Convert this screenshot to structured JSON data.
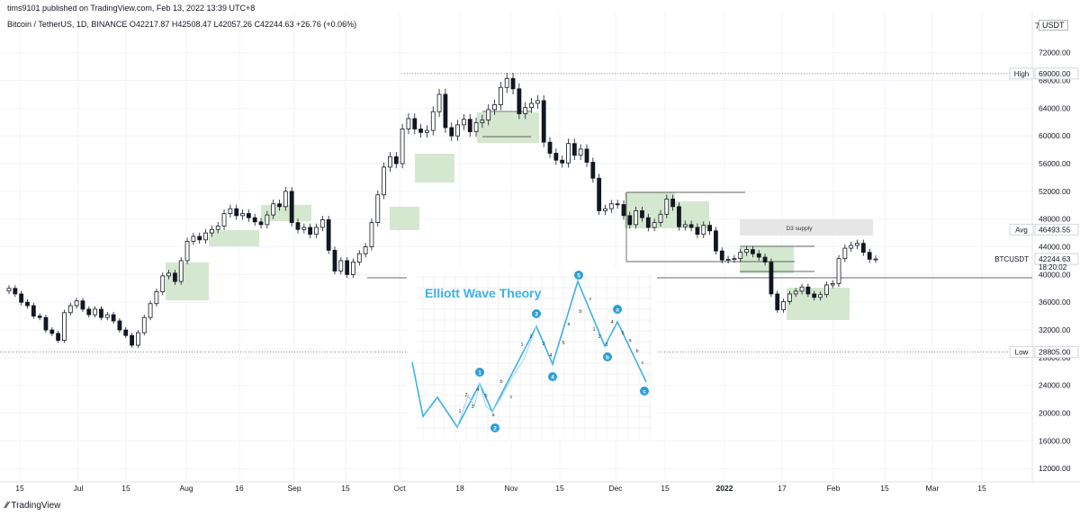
{
  "header": {
    "published_line": "tims9101 published on TradingView.com, Feb 13, 2022 13:39 UTC+8",
    "symbol_line": "Bitcoin / TetherUS, 1D, BINANCE  O42217.87  H42508.47  L42057.26  C42244.63  +26.76 (+0.06%)",
    "currency_badge": "USDT",
    "scale_mode": "7"
  },
  "footer": {
    "brand": "TradingView"
  },
  "colors": {
    "candle_up": "#131722",
    "candle_down": "#131722",
    "zone_fill": "#d4e8cf",
    "wave_line": "#3cb1e8",
    "label_bg": "#2a9fd8"
  },
  "chart_data": {
    "type": "candlestick",
    "symbol": "BTCUSDT",
    "timeframe": "1D",
    "exchange": "BINANCE",
    "ylim": [
      10000,
      76000
    ],
    "y_ticks": [
      12000,
      16000,
      20000,
      24000,
      28000,
      32000,
      36000,
      40000,
      44000,
      48000,
      52000,
      56000,
      60000,
      64000,
      68000,
      72000
    ],
    "y_tick_labels": [
      "12000.00",
      "16000.00",
      "20000.00",
      "24000.00",
      "28000.00",
      "32000.00",
      "36000.00",
      "40000.00",
      "44000.00",
      "48000.00",
      "52000.00",
      "56000.00",
      "60000.00",
      "64000.00",
      "68000.00",
      "72000.00"
    ],
    "x_tick_labels": [
      "15",
      "Jul",
      "15",
      "Aug",
      "16",
      "Sep",
      "15",
      "Oct",
      "18",
      "Nov",
      "15",
      "Dec",
      "15",
      "2022",
      "17",
      "Feb",
      "15",
      "Mar",
      "15"
    ],
    "price_markers": [
      {
        "label": "High",
        "value": 69000,
        "text": "69000.00"
      },
      {
        "label": "Avg",
        "value": 46493.55,
        "text": "46493.55"
      },
      {
        "label": "BTCUSDT",
        "value": 42244.63,
        "text": "42244.63",
        "countdown": "18:20:02"
      },
      {
        "label": "Low",
        "value": 28805,
        "text": "28805.00"
      }
    ],
    "close_path": [
      38000,
      37200,
      36000,
      35500,
      34000,
      33800,
      32000,
      31500,
      30500,
      34500,
      35500,
      36200,
      35000,
      34200,
      35000,
      33800,
      34200,
      33300,
      32000,
      31200,
      29800,
      31600,
      33800,
      35800,
      37500,
      39800,
      40200,
      39000,
      42000,
      44800,
      45500,
      45000,
      46000,
      46500,
      47000,
      48800,
      49500,
      48500,
      48800,
      48200,
      47600,
      47200,
      48600,
      50200,
      49800,
      52000,
      47500,
      46500,
      46800,
      45800,
      46800,
      47900,
      43500,
      40500,
      42000,
      40000,
      41800,
      43000,
      44000,
      47500,
      51500,
      55500,
      57000,
      56000,
      61000,
      62500,
      61000,
      60500,
      60800,
      63500,
      66000,
      61200,
      60000,
      61600,
      62400,
      60600,
      61900,
      62300,
      63800,
      64500,
      67000,
      68300,
      66800,
      63200,
      64100,
      64700,
      65100,
      59100,
      57500,
      56500,
      56100,
      58900,
      57200,
      58100,
      56200,
      53900,
      49200,
      49500,
      50200,
      50100,
      48500,
      47200,
      49200,
      48200,
      46800,
      47500,
      48700,
      50900,
      49800,
      46900,
      47200,
      46800,
      45800,
      47100,
      46300,
      43400,
      42100,
      42200,
      42300,
      43200,
      43600,
      43000,
      42500,
      41800,
      37200,
      34900,
      36100,
      37200,
      37600,
      38200,
      37200,
      36700,
      37100,
      38500,
      38700,
      42300,
      43800,
      44200,
      44500,
      43200,
      42200,
      42244
    ]
  },
  "annotations": {
    "zone_label": "D3 supply",
    "inset": {
      "title": "Elliott Wave Theory",
      "wave_labels": [
        "1",
        "2",
        "3",
        "4",
        "5",
        "a",
        "b",
        "c"
      ],
      "subwave_text": [
        "1",
        "2",
        "3",
        "4",
        "5",
        "a",
        "b",
        "c"
      ]
    }
  }
}
